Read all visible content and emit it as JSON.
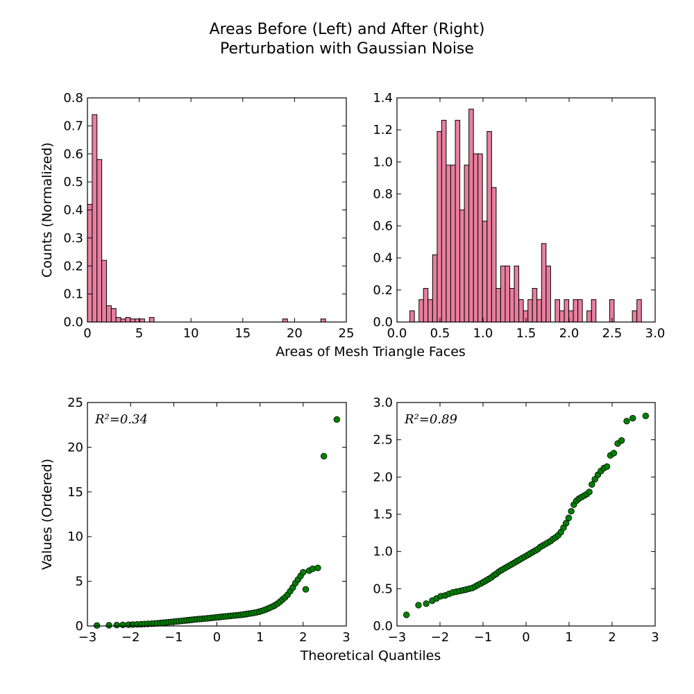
{
  "figure": {
    "title_line1": "Areas Before (Left) and After (Right)",
    "title_line2": "Perturbation with Gaussian Noise",
    "hist_xlabel": "Areas of Mesh Triangle Faces",
    "qq_xlabel": "Theoretical Quantiles"
  },
  "colors": {
    "bar_fill": "#e87ea0",
    "bar_edge": "#000000",
    "point_fill": "#008000",
    "point_edge": "#000000",
    "axis": "#000000"
  },
  "chart_data": [
    {
      "type": "bar",
      "panel": "top-left",
      "title": "",
      "xlabel": "",
      "ylabel": "Counts (Normalized)",
      "xlim": [
        0,
        25
      ],
      "ylim": [
        0,
        0.8
      ],
      "xticks": [
        0,
        5,
        10,
        15,
        20,
        25
      ],
      "yticks": [
        0.0,
        0.1,
        0.2,
        0.3,
        0.4,
        0.5,
        0.6,
        0.7,
        0.8
      ],
      "xtick_labels": [
        "0",
        "5",
        "10",
        "15",
        "20",
        "25"
      ],
      "ytick_labels": [
        "0.0",
        "0.1",
        "0.2",
        "0.3",
        "0.4",
        "0.5",
        "0.6",
        "0.7",
        "0.8"
      ],
      "bin_width": 0.46,
      "bin_starts": [
        0,
        0.46,
        0.92,
        1.38,
        1.84,
        2.3,
        2.76,
        3.22,
        3.68,
        4.14,
        4.6,
        5.06,
        5.98,
        18.86,
        22.54
      ],
      "values": [
        0.42,
        0.74,
        0.58,
        0.22,
        0.058,
        0.048,
        0.016,
        0.011,
        0.016,
        0.011,
        0.011,
        0.011,
        0.016,
        0.011,
        0.011
      ]
    },
    {
      "type": "bar",
      "panel": "top-right",
      "title": "",
      "xlabel": "",
      "ylabel": "",
      "xlim": [
        0,
        3.0
      ],
      "ylim": [
        0,
        1.4
      ],
      "xticks": [
        0,
        0.5,
        1.0,
        1.5,
        2.0,
        2.5,
        3.0
      ],
      "yticks": [
        0,
        0.2,
        0.4,
        0.6,
        0.8,
        1.0,
        1.2,
        1.4
      ],
      "xtick_labels": [
        "0.0",
        "0.5",
        "1.0",
        "1.5",
        "2.0",
        "2.5",
        "3.0"
      ],
      "ytick_labels": [
        "0.0",
        "0.2",
        "0.4",
        "0.6",
        "0.8",
        "1.0",
        "1.2",
        "1.4"
      ],
      "bin_width": 0.0527,
      "bin_starts": [
        0.15,
        0.203,
        0.256,
        0.308,
        0.361,
        0.414,
        0.467,
        0.519,
        0.572,
        0.625,
        0.678,
        0.73,
        0.783,
        0.836,
        0.889,
        0.941,
        0.994,
        1.047,
        1.1,
        1.152,
        1.205,
        1.258,
        1.311,
        1.363,
        1.416,
        1.469,
        1.522,
        1.574,
        1.627,
        1.68,
        1.733,
        1.785,
        1.838,
        1.891,
        1.944,
        1.996,
        2.049,
        2.102,
        2.155,
        2.207,
        2.26,
        2.313,
        2.366,
        2.418,
        2.471,
        2.524,
        2.577,
        2.629,
        2.682,
        2.735,
        2.788
      ],
      "values": [
        0.07,
        0.0,
        0.14,
        0.21,
        0.14,
        0.42,
        1.19,
        1.26,
        0.98,
        0.98,
        1.26,
        0.7,
        0.98,
        1.33,
        1.05,
        1.05,
        0.63,
        1.19,
        0.84,
        0.21,
        0.35,
        0.35,
        0.21,
        0.35,
        0.14,
        0.07,
        0.14,
        0.21,
        0.14,
        0.49,
        0.35,
        0.0,
        0.14,
        0.07,
        0.14,
        0.07,
        0.14,
        0.14,
        0.0,
        0.07,
        0.14,
        0.0,
        0.0,
        0.0,
        0.14,
        0.0,
        0.0,
        0.0,
        0.0,
        0.07,
        0.14
      ]
    },
    {
      "type": "scatter",
      "panel": "bottom-left",
      "title": "",
      "xlabel": "",
      "ylabel": "Values (Ordered)",
      "annotation": "R²=0.34",
      "xlim": [
        -3,
        3
      ],
      "ylim": [
        0,
        25
      ],
      "xticks": [
        -3,
        -2,
        -1,
        0,
        1,
        2,
        3
      ],
      "yticks": [
        0,
        5,
        10,
        15,
        20,
        25
      ],
      "xtick_labels": [
        "−3",
        "−2",
        "−1",
        "0",
        "1",
        "2",
        "3"
      ],
      "ytick_labels": [
        "0",
        "5",
        "10",
        "15",
        "20",
        "25"
      ],
      "x": [
        -2.78,
        -2.5,
        -2.32,
        -2.18,
        -2.05,
        -1.95,
        -1.85,
        -1.76,
        -1.68,
        -1.6,
        -1.52,
        -1.45,
        -1.38,
        -1.31,
        -1.25,
        -1.18,
        -1.12,
        -1.06,
        -1.0,
        -0.94,
        -0.88,
        -0.82,
        -0.76,
        -0.7,
        -0.64,
        -0.58,
        -0.52,
        -0.46,
        -0.4,
        -0.34,
        -0.28,
        -0.22,
        -0.16,
        -0.1,
        -0.04,
        0.02,
        0.08,
        0.14,
        0.2,
        0.26,
        0.32,
        0.38,
        0.44,
        0.5,
        0.56,
        0.62,
        0.68,
        0.74,
        0.8,
        0.86,
        0.92,
        0.98,
        1.04,
        1.1,
        1.16,
        1.22,
        1.28,
        1.34,
        1.4,
        1.46,
        1.52,
        1.58,
        1.64,
        1.7,
        1.76,
        1.82,
        1.88,
        1.94,
        2.0,
        2.06,
        2.14,
        2.22,
        2.34,
        2.48,
        2.78
      ],
      "y": [
        0.05,
        0.08,
        0.1,
        0.12,
        0.14,
        0.16,
        0.18,
        0.2,
        0.22,
        0.24,
        0.26,
        0.28,
        0.3,
        0.33,
        0.36,
        0.39,
        0.42,
        0.45,
        0.48,
        0.51,
        0.54,
        0.57,
        0.6,
        0.63,
        0.66,
        0.69,
        0.72,
        0.75,
        0.78,
        0.8,
        0.83,
        0.86,
        0.89,
        0.92,
        0.95,
        0.98,
        1.01,
        1.04,
        1.07,
        1.1,
        1.13,
        1.16,
        1.19,
        1.22,
        1.25,
        1.29,
        1.33,
        1.37,
        1.42,
        1.47,
        1.53,
        1.6,
        1.68,
        1.78,
        1.9,
        2.02,
        2.15,
        2.3,
        2.48,
        2.7,
        2.95,
        3.2,
        3.5,
        3.9,
        4.3,
        4.8,
        5.2,
        5.6,
        6.0,
        4.1,
        6.2,
        6.4,
        6.5,
        19.0,
        23.1
      ]
    },
    {
      "type": "scatter",
      "panel": "bottom-right",
      "title": "",
      "xlabel": "",
      "ylabel": "",
      "annotation": "R²=0.89",
      "xlim": [
        -3,
        3
      ],
      "ylim": [
        0,
        3.0
      ],
      "xticks": [
        -3,
        -2,
        -1,
        0,
        1,
        2,
        3
      ],
      "yticks": [
        0,
        0.5,
        1.0,
        1.5,
        2.0,
        2.5,
        3.0
      ],
      "xtick_labels": [
        "−3",
        "−2",
        "−1",
        "0",
        "1",
        "2",
        "3"
      ],
      "ytick_labels": [
        "0.0",
        "0.5",
        "1.0",
        "1.5",
        "2.0",
        "2.5",
        "3.0"
      ],
      "x": [
        -2.78,
        -2.5,
        -2.32,
        -2.18,
        -2.08,
        -1.98,
        -1.88,
        -1.79,
        -1.7,
        -1.62,
        -1.54,
        -1.46,
        -1.39,
        -1.32,
        -1.25,
        -1.18,
        -1.12,
        -1.05,
        -0.99,
        -0.93,
        -0.87,
        -0.81,
        -0.75,
        -0.69,
        -0.63,
        -0.57,
        -0.51,
        -0.45,
        -0.39,
        -0.33,
        -0.27,
        -0.21,
        -0.15,
        -0.09,
        -0.03,
        0.03,
        0.09,
        0.15,
        0.21,
        0.27,
        0.33,
        0.39,
        0.45,
        0.51,
        0.57,
        0.63,
        0.69,
        0.75,
        0.81,
        0.87,
        0.93,
        0.99,
        1.05,
        1.11,
        1.17,
        1.23,
        1.29,
        1.35,
        1.41,
        1.47,
        1.53,
        1.6,
        1.67,
        1.74,
        1.81,
        1.88,
        1.96,
        2.04,
        2.13,
        2.22,
        2.34,
        2.48,
        2.78
      ],
      "y": [
        0.15,
        0.28,
        0.3,
        0.34,
        0.37,
        0.4,
        0.41,
        0.43,
        0.45,
        0.46,
        0.47,
        0.48,
        0.49,
        0.5,
        0.51,
        0.53,
        0.55,
        0.57,
        0.59,
        0.61,
        0.63,
        0.65,
        0.68,
        0.7,
        0.73,
        0.75,
        0.77,
        0.79,
        0.81,
        0.83,
        0.85,
        0.87,
        0.89,
        0.91,
        0.93,
        0.95,
        0.97,
        0.99,
        1.01,
        1.03,
        1.06,
        1.08,
        1.1,
        1.12,
        1.14,
        1.17,
        1.19,
        1.22,
        1.26,
        1.32,
        1.38,
        1.45,
        1.54,
        1.63,
        1.68,
        1.71,
        1.73,
        1.75,
        1.77,
        1.8,
        1.9,
        1.97,
        2.03,
        2.08,
        2.12,
        2.14,
        2.29,
        2.32,
        2.45,
        2.49,
        2.75,
        2.79,
        2.82
      ]
    }
  ]
}
